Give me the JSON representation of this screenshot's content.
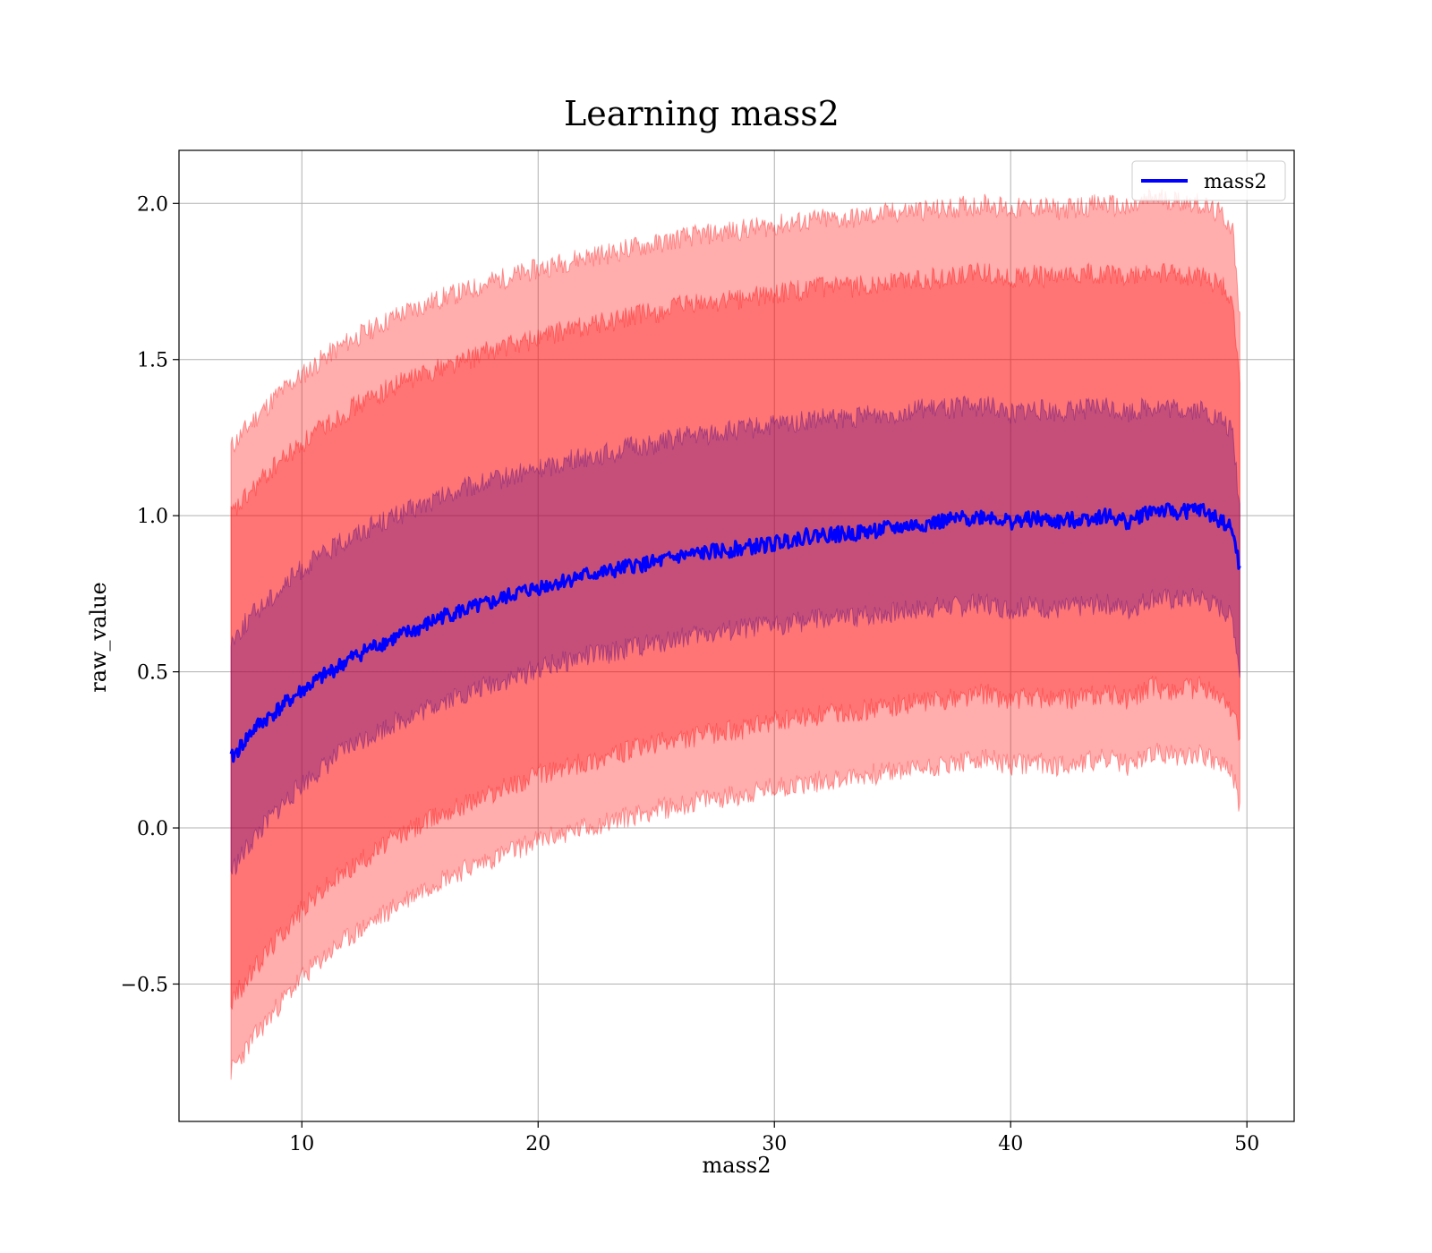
{
  "chart_data": {
    "type": "line",
    "title": "Learning mass2",
    "xlabel": "mass2",
    "ylabel": "raw_value",
    "xlim": [
      4.8,
      52.0
    ],
    "ylim": [
      -0.94,
      2.17
    ],
    "grid": true,
    "legend": {
      "placement": "top-right"
    },
    "x_ticks": [
      10,
      20,
      30,
      40,
      50
    ],
    "x_tick_labels": [
      "10",
      "20",
      "30",
      "40",
      "50"
    ],
    "y_ticks": [
      -0.5,
      0.0,
      0.5,
      1.0,
      1.5,
      2.0
    ],
    "y_tick_labels": [
      "−0.5",
      "0.0",
      "0.5",
      "1.0",
      "1.5",
      "2.0"
    ],
    "x": [
      7.0,
      8.0,
      9.0,
      10.0,
      11.0,
      12.0,
      13.0,
      14.0,
      15.0,
      16.0,
      17.0,
      18.0,
      19.0,
      20.0,
      21.0,
      22.0,
      23.0,
      24.0,
      25.0,
      26.0,
      27.0,
      28.0,
      29.0,
      30.0,
      31.0,
      32.0,
      33.0,
      34.0,
      35.0,
      36.0,
      37.0,
      38.0,
      39.0,
      40.0,
      41.0,
      42.0,
      43.0,
      44.0,
      45.0,
      46.0,
      47.0,
      48.0,
      49.0,
      49.4,
      49.7
    ],
    "series": [
      {
        "name": "mass2",
        "color": "#0000ff",
        "values": [
          0.22,
          0.32,
          0.38,
          0.44,
          0.49,
          0.54,
          0.58,
          0.61,
          0.64,
          0.68,
          0.7,
          0.72,
          0.75,
          0.77,
          0.79,
          0.81,
          0.82,
          0.84,
          0.85,
          0.87,
          0.88,
          0.89,
          0.9,
          0.91,
          0.93,
          0.94,
          0.94,
          0.95,
          0.96,
          0.97,
          0.98,
          0.99,
          1.0,
          0.98,
          0.99,
          0.98,
          0.99,
          1.0,
          0.98,
          1.02,
          1.01,
          1.02,
          0.98,
          0.95,
          0.83
        ]
      }
    ],
    "bands": [
      {
        "color": "#ff0000",
        "alpha": 0.32,
        "lower": [
          -0.78,
          -0.67,
          -0.57,
          -0.48,
          -0.41,
          -0.35,
          -0.3,
          -0.25,
          -0.2,
          -0.16,
          -0.13,
          -0.1,
          -0.07,
          -0.04,
          -0.02,
          0.0,
          0.02,
          0.04,
          0.06,
          0.07,
          0.09,
          0.1,
          0.11,
          0.13,
          0.14,
          0.15,
          0.16,
          0.17,
          0.18,
          0.19,
          0.2,
          0.21,
          0.22,
          0.2,
          0.21,
          0.2,
          0.21,
          0.22,
          0.2,
          0.24,
          0.23,
          0.24,
          0.2,
          0.17,
          0.07
        ],
        "upper": [
          1.22,
          1.31,
          1.39,
          1.45,
          1.51,
          1.56,
          1.6,
          1.64,
          1.67,
          1.7,
          1.72,
          1.75,
          1.77,
          1.79,
          1.81,
          1.83,
          1.84,
          1.86,
          1.87,
          1.89,
          1.9,
          1.91,
          1.92,
          1.93,
          1.94,
          1.95,
          1.95,
          1.96,
          1.97,
          1.98,
          1.98,
          1.99,
          2.0,
          1.98,
          1.99,
          1.98,
          1.99,
          2.0,
          1.98,
          2.02,
          2.01,
          2.0,
          1.96,
          1.92,
          1.62
        ]
      },
      {
        "color": "#ff0000",
        "alpha": 0.32,
        "lower": [
          -0.56,
          -0.45,
          -0.35,
          -0.26,
          -0.19,
          -0.13,
          -0.08,
          -0.03,
          0.01,
          0.05,
          0.08,
          0.11,
          0.14,
          0.17,
          0.19,
          0.21,
          0.23,
          0.25,
          0.27,
          0.28,
          0.3,
          0.31,
          0.32,
          0.34,
          0.35,
          0.36,
          0.37,
          0.38,
          0.39,
          0.4,
          0.41,
          0.42,
          0.43,
          0.41,
          0.42,
          0.41,
          0.42,
          0.43,
          0.41,
          0.45,
          0.44,
          0.45,
          0.41,
          0.38,
          0.29
        ],
        "upper": [
          1.0,
          1.09,
          1.17,
          1.23,
          1.29,
          1.34,
          1.38,
          1.42,
          1.45,
          1.48,
          1.5,
          1.53,
          1.55,
          1.57,
          1.59,
          1.61,
          1.62,
          1.64,
          1.65,
          1.67,
          1.68,
          1.69,
          1.7,
          1.71,
          1.72,
          1.73,
          1.73,
          1.74,
          1.75,
          1.76,
          1.76,
          1.77,
          1.78,
          1.76,
          1.77,
          1.76,
          1.77,
          1.78,
          1.76,
          1.78,
          1.77,
          1.77,
          1.73,
          1.69,
          1.4
        ]
      },
      {
        "color": "#4b0082",
        "alpha": 0.32,
        "lower": [
          -0.14,
          -0.03,
          0.06,
          0.14,
          0.2,
          0.26,
          0.3,
          0.34,
          0.37,
          0.41,
          0.43,
          0.46,
          0.48,
          0.51,
          0.53,
          0.55,
          0.56,
          0.58,
          0.59,
          0.61,
          0.62,
          0.63,
          0.64,
          0.65,
          0.66,
          0.67,
          0.67,
          0.68,
          0.69,
          0.7,
          0.71,
          0.71,
          0.72,
          0.7,
          0.71,
          0.7,
          0.71,
          0.72,
          0.7,
          0.74,
          0.73,
          0.74,
          0.7,
          0.67,
          0.5
        ],
        "upper": [
          0.6,
          0.69,
          0.76,
          0.83,
          0.88,
          0.93,
          0.97,
          1.0,
          1.03,
          1.06,
          1.09,
          1.11,
          1.13,
          1.15,
          1.17,
          1.19,
          1.2,
          1.22,
          1.23,
          1.25,
          1.26,
          1.27,
          1.28,
          1.29,
          1.3,
          1.31,
          1.31,
          1.32,
          1.33,
          1.34,
          1.34,
          1.35,
          1.35,
          1.33,
          1.34,
          1.33,
          1.34,
          1.35,
          1.33,
          1.35,
          1.34,
          1.34,
          1.3,
          1.26,
          1.02
        ]
      }
    ]
  }
}
